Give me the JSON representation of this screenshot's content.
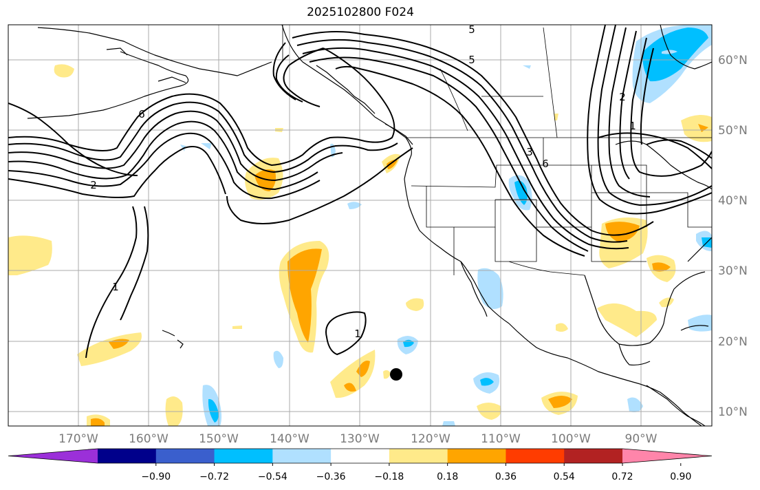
{
  "title": "2025102800 F024",
  "map": {
    "projection": "PlateCarree",
    "lon_range": [
      -180,
      -80
    ],
    "lat_range": [
      8,
      65
    ],
    "grid": true,
    "lon_ticks": [
      "170°W",
      "160°W",
      "150°W",
      "140°W",
      "130°W",
      "120°W",
      "110°W",
      "100°W",
      "90°W"
    ],
    "lat_ticks": [
      "60°N",
      "50°N",
      "40°N",
      "30°N",
      "20°N",
      "10°N"
    ],
    "contour_levels_labeled": [
      "5",
      "6",
      "2",
      "1",
      "1",
      "5",
      "6",
      "3",
      "2",
      "1"
    ],
    "marker": {
      "lon": -125,
      "lat": 15.5,
      "color": "#000000"
    }
  },
  "colorbar": {
    "extend": "both",
    "bounds": [
      "−0.90",
      "−0.72",
      "−0.54",
      "−0.36",
      "−0.18",
      "0.18",
      "0.36",
      "0.54",
      "0.72",
      "0.90"
    ],
    "colors": [
      "#9b30d9",
      "#00008b",
      "#3a5fcd",
      "#00bfff",
      "#b0e0ff",
      "#ffffff",
      "#ffea8a",
      "#ffa500",
      "#ff3c00",
      "#b22222",
      "#ff85aa"
    ]
  }
}
